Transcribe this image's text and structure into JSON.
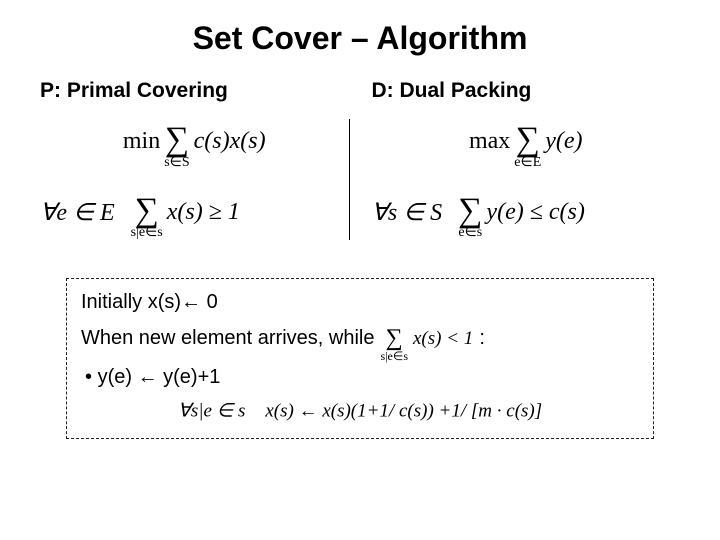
{
  "title": "Set Cover – Algorithm",
  "left": {
    "heading": "P: Primal Covering",
    "objective": {
      "lead": "min",
      "sum_under": "s∈S",
      "body": "c(s)x(s)"
    },
    "constraint": {
      "quant": "∀e ∈ E",
      "sum_under": "s|e∈s",
      "body": "x(s) ≥ 1"
    }
  },
  "right": {
    "heading": "D: Dual Packing",
    "objective": {
      "lead": "max",
      "sum_under": "e∈E",
      "body": "y(e)"
    },
    "constraint": {
      "quant": "∀s ∈ S",
      "sum_under": "e∈s",
      "body": "y(e) ≤ c(s)"
    }
  },
  "algo": {
    "line1": "Initially x(s)← 0",
    "line2_prefix": "When new element arrives, while",
    "line2_sum_under": "s|e∈s",
    "line2_sum_body": "x(s) < 1",
    "line2_colon": ":",
    "bullet": "• ",
    "bullet_text": "y(e) ← y(e)+1",
    "update_quant": "∀s|e ∈ s",
    "update_body": "x(s) ← x(s)(1+1/ c(s)) +1/ [m · c(s)]"
  },
  "style": {
    "title_color": "#000000",
    "text_color": "#000000",
    "border_dash_color": "#222222",
    "background": "#ffffff"
  }
}
